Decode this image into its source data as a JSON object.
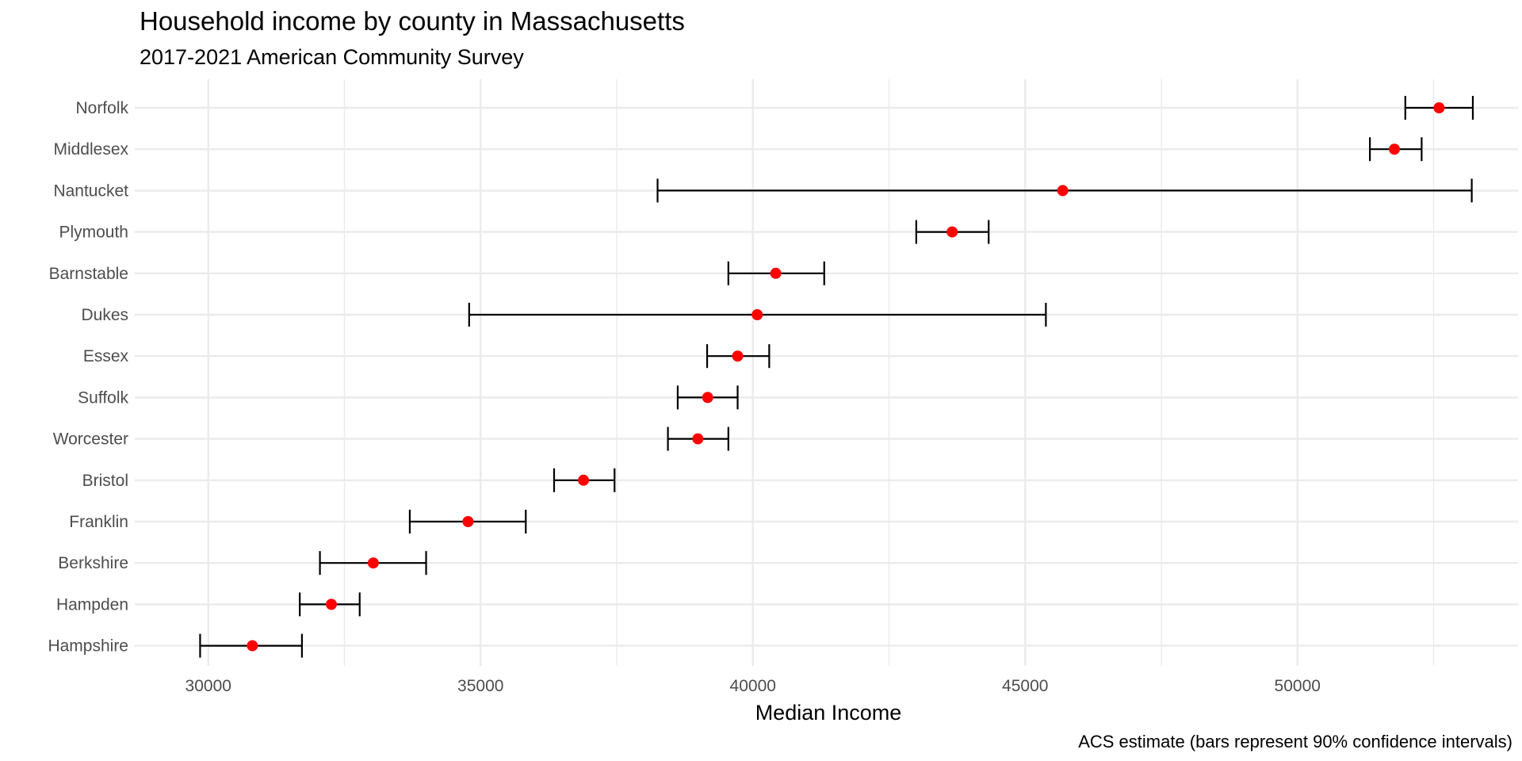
{
  "chart_data": {
    "type": "errorbar-dot",
    "title": "Household income by county in Massachusetts",
    "subtitle": "2017-2021 American Community Survey",
    "xlabel": "Median Income",
    "ylabel": "",
    "caption": "ACS estimate (bars represent 90% confidence intervals)",
    "xlim": [
      28650,
      54050
    ],
    "x_ticks": [
      30000,
      35000,
      40000,
      45000,
      50000
    ],
    "x_tick_labels": [
      "30000",
      "35000",
      "40000",
      "45000",
      "50000"
    ],
    "grid": true,
    "point_color": "#ff0000",
    "bar_color": "#000000",
    "grid_color": "#ebebeb",
    "categories": [
      "Norfolk",
      "Middlesex",
      "Nantucket",
      "Plymouth",
      "Barnstable",
      "Dukes",
      "Essex",
      "Suffolk",
      "Worcester",
      "Bristol",
      "Franklin",
      "Berkshire",
      "Hampden",
      "Hampshire"
    ],
    "estimate": [
      52600,
      51780,
      45690,
      43660,
      40420,
      40080,
      39720,
      39170,
      38990,
      36890,
      34770,
      33030,
      32260,
      30810
    ],
    "lower": [
      51980,
      51330,
      38250,
      43000,
      39550,
      34790,
      39160,
      38620,
      38440,
      36350,
      33700,
      32050,
      31680,
      29850
    ],
    "upper": [
      53220,
      52280,
      53200,
      44330,
      41310,
      45380,
      40300,
      39720,
      39550,
      37460,
      35830,
      34000,
      32780,
      31720
    ]
  }
}
